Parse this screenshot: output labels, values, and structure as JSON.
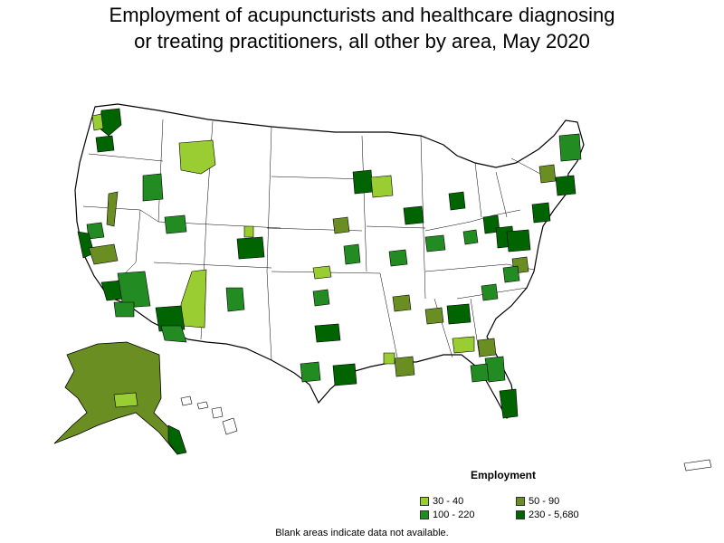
{
  "title_line1": "Employment of acupuncturists and healthcare diagnosing",
  "title_line2": "or treating practitioners, all other by area, May 2020",
  "legend": {
    "title": "Employment",
    "items": [
      {
        "label": "30 - 40",
        "color": "#9acd32"
      },
      {
        "label": "50 - 90",
        "color": "#6b8e23"
      },
      {
        "label": "100 - 220",
        "color": "#228b22"
      },
      {
        "label": "230 - 5,680",
        "color": "#006400"
      }
    ]
  },
  "footnote": "Blank areas indicate data not available."
}
